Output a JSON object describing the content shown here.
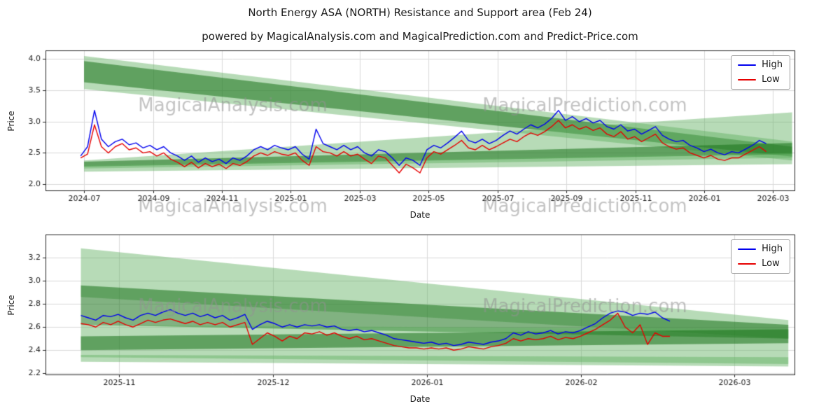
{
  "page": {
    "title": "North Energy ASA (NORTH) Resistance and Support area (Feb 24)",
    "subtitle": "powered by MagicalAnalysis.com and MagicalPrediction.com and Predict-Price.com"
  },
  "colors": {
    "light": "rgba(96,176,96,0.45)",
    "dark": "rgba(25,115,25,0.55)",
    "grid": "#d9d9d9",
    "axis": "#262626",
    "tick_text": "#1a1a1a",
    "watermark": "rgba(145,145,145,0.55)",
    "high_line": "#0000ee",
    "low_line": "#e60000"
  },
  "chart_data": [
    {
      "type": "line",
      "xlabel": "Date",
      "ylabel": "Price",
      "xlim": [
        -1.12,
        20.62
      ],
      "ylim": [
        1.9,
        4.14
      ],
      "x_tick_labels": [
        "2024-07",
        "2024-09",
        "2024-11",
        "2025-01",
        "2025-03",
        "2025-05",
        "2025-07",
        "2025-09",
        "2025-11",
        "2026-01",
        "2026-03"
      ],
      "x_tick_pos": [
        0,
        2,
        4,
        6,
        8,
        10,
        12,
        14,
        16,
        18,
        20
      ],
      "y_ticks": [
        2.0,
        2.5,
        3.0,
        3.5,
        4.0
      ],
      "grid": true,
      "legend_position": "upper right",
      "series": [
        {
          "name": "High",
          "color": "#0000ee",
          "x_start": -0.1,
          "x_end": 19.8,
          "values": [
            2.45,
            2.6,
            3.18,
            2.72,
            2.6,
            2.68,
            2.72,
            2.63,
            2.66,
            2.58,
            2.62,
            2.55,
            2.6,
            2.5,
            2.45,
            2.38,
            2.45,
            2.35,
            2.42,
            2.36,
            2.4,
            2.33,
            2.42,
            2.38,
            2.45,
            2.55,
            2.6,
            2.55,
            2.62,
            2.58,
            2.55,
            2.6,
            2.48,
            2.4,
            2.88,
            2.65,
            2.6,
            2.55,
            2.62,
            2.55,
            2.6,
            2.5,
            2.45,
            2.55,
            2.52,
            2.42,
            2.3,
            2.42,
            2.38,
            2.3,
            2.55,
            2.62,
            2.58,
            2.66,
            2.75,
            2.85,
            2.7,
            2.66,
            2.72,
            2.65,
            2.7,
            2.78,
            2.85,
            2.8,
            2.88,
            2.95,
            2.9,
            2.96,
            3.05,
            3.18,
            3.02,
            3.08,
            3.0,
            3.05,
            2.98,
            3.02,
            2.92,
            2.88,
            2.95,
            2.85,
            2.88,
            2.8,
            2.86,
            2.92,
            2.78,
            2.72,
            2.68,
            2.7,
            2.62,
            2.58,
            2.52,
            2.56,
            2.5,
            2.47,
            2.52,
            2.5,
            2.56,
            2.62,
            2.7,
            2.65
          ]
        },
        {
          "name": "Low",
          "color": "#e60000",
          "x_start": -0.1,
          "x_end": 19.8,
          "values": [
            2.42,
            2.48,
            2.95,
            2.6,
            2.5,
            2.6,
            2.65,
            2.55,
            2.58,
            2.5,
            2.52,
            2.45,
            2.5,
            2.4,
            2.35,
            2.28,
            2.35,
            2.26,
            2.33,
            2.28,
            2.32,
            2.25,
            2.33,
            2.3,
            2.36,
            2.45,
            2.5,
            2.46,
            2.52,
            2.48,
            2.46,
            2.5,
            2.38,
            2.3,
            2.6,
            2.52,
            2.5,
            2.45,
            2.52,
            2.45,
            2.48,
            2.4,
            2.33,
            2.45,
            2.42,
            2.3,
            2.18,
            2.32,
            2.26,
            2.18,
            2.42,
            2.52,
            2.48,
            2.55,
            2.62,
            2.7,
            2.58,
            2.55,
            2.62,
            2.55,
            2.6,
            2.66,
            2.72,
            2.68,
            2.76,
            2.82,
            2.78,
            2.84,
            2.92,
            3.02,
            2.9,
            2.95,
            2.88,
            2.92,
            2.86,
            2.9,
            2.8,
            2.76,
            2.84,
            2.72,
            2.76,
            2.68,
            2.74,
            2.8,
            2.66,
            2.6,
            2.56,
            2.58,
            2.5,
            2.46,
            2.42,
            2.46,
            2.4,
            2.38,
            2.42,
            2.42,
            2.48,
            2.54,
            2.6,
            2.52
          ]
        }
      ],
      "bands": [
        {
          "tone": "light",
          "x0": 0,
          "x1": 20.55,
          "top0": 4.05,
          "bot0": 3.52,
          "top1": 2.68,
          "bot1": 2.38
        },
        {
          "tone": "dark",
          "x0": 0,
          "x1": 20.55,
          "top0": 3.97,
          "bot0": 3.63,
          "top1": 2.6,
          "bot1": 2.44
        },
        {
          "tone": "light",
          "x0": 0,
          "x1": 20.55,
          "top0": 2.38,
          "bot0": 2.25,
          "top1": 3.15,
          "bot1": 2.42
        },
        {
          "tone": "dark",
          "x0": 0,
          "x1": 20.55,
          "top0": 2.36,
          "bot0": 2.28,
          "top1": 2.66,
          "bot1": 2.48
        },
        {
          "tone": "light",
          "x0": 0,
          "x1": 20.55,
          "top0": 2.3,
          "bot0": 2.2,
          "top1": 2.5,
          "bot1": 2.32
        }
      ],
      "watermarks": [
        {
          "text": "MagicalAnalysis.com",
          "fx": 0.25,
          "fy": 0.4
        },
        {
          "text": "MagicalPrediction.com",
          "fx": 0.72,
          "fy": 0.4
        },
        {
          "text": "MagicalAnalysis.com",
          "fx": 0.25,
          "fy": 1.12
        },
        {
          "text": "MagicalPrediction.com",
          "fx": 0.72,
          "fy": 1.12
        }
      ]
    },
    {
      "type": "line",
      "xlabel": "Date",
      "ylabel": "Price",
      "xlim": [
        -0.48,
        4.39
      ],
      "ylim": [
        2.19,
        3.4
      ],
      "x_tick_labels": [
        "2025-11",
        "2025-12",
        "2026-01",
        "2026-02",
        "2026-03"
      ],
      "x_tick_pos": [
        0,
        1,
        2,
        3,
        4
      ],
      "y_ticks": [
        2.2,
        2.4,
        2.6,
        2.8,
        3.0,
        3.2
      ],
      "grid": true,
      "legend_position": "upper right",
      "series": [
        {
          "name": "High",
          "color": "#0000ee",
          "x_start": -0.25,
          "x_end": 3.58,
          "values": [
            2.7,
            2.68,
            2.66,
            2.7,
            2.69,
            2.71,
            2.68,
            2.66,
            2.7,
            2.72,
            2.7,
            2.73,
            2.75,
            2.72,
            2.7,
            2.72,
            2.69,
            2.71,
            2.68,
            2.7,
            2.66,
            2.68,
            2.71,
            2.58,
            2.62,
            2.65,
            2.63,
            2.6,
            2.62,
            2.6,
            2.62,
            2.61,
            2.62,
            2.6,
            2.61,
            2.58,
            2.57,
            2.58,
            2.56,
            2.57,
            2.55,
            2.53,
            2.5,
            2.49,
            2.48,
            2.47,
            2.46,
            2.47,
            2.45,
            2.46,
            2.44,
            2.45,
            2.47,
            2.46,
            2.45,
            2.47,
            2.48,
            2.5,
            2.55,
            2.53,
            2.56,
            2.54,
            2.55,
            2.57,
            2.54,
            2.56,
            2.55,
            2.57,
            2.6,
            2.63,
            2.68,
            2.72,
            2.74,
            2.73,
            2.7,
            2.72,
            2.71,
            2.73,
            2.68,
            2.65
          ]
        },
        {
          "name": "Low",
          "color": "#e60000",
          "x_start": -0.25,
          "x_end": 3.58,
          "values": [
            2.63,
            2.62,
            2.6,
            2.64,
            2.62,
            2.65,
            2.62,
            2.6,
            2.63,
            2.66,
            2.64,
            2.66,
            2.67,
            2.65,
            2.63,
            2.65,
            2.62,
            2.64,
            2.62,
            2.64,
            2.6,
            2.62,
            2.64,
            2.45,
            2.5,
            2.55,
            2.52,
            2.48,
            2.52,
            2.5,
            2.55,
            2.54,
            2.56,
            2.53,
            2.55,
            2.52,
            2.5,
            2.52,
            2.49,
            2.5,
            2.48,
            2.46,
            2.44,
            2.43,
            2.42,
            2.42,
            2.41,
            2.42,
            2.41,
            2.42,
            2.4,
            2.41,
            2.43,
            2.42,
            2.41,
            2.43,
            2.44,
            2.46,
            2.5,
            2.48,
            2.5,
            2.49,
            2.5,
            2.52,
            2.49,
            2.51,
            2.5,
            2.52,
            2.55,
            2.58,
            2.62,
            2.66,
            2.72,
            2.6,
            2.55,
            2.62,
            2.45,
            2.55,
            2.52,
            2.52
          ]
        }
      ],
      "bands": [
        {
          "tone": "light",
          "x0": -0.25,
          "x1": 4.35,
          "top0": 3.28,
          "bot0": 2.86,
          "top1": 2.66,
          "bot1": 2.5
        },
        {
          "tone": "dark",
          "x0": -0.25,
          "x1": 4.35,
          "top0": 2.96,
          "bot0": 2.62,
          "top1": 2.62,
          "bot1": 2.5
        },
        {
          "tone": "light",
          "x0": -0.25,
          "x1": 4.35,
          "top0": 2.62,
          "bot0": 2.34,
          "top1": 2.58,
          "bot1": 2.28
        },
        {
          "tone": "dark",
          "x0": -0.25,
          "x1": 4.35,
          "top0": 2.52,
          "bot0": 2.4,
          "top1": 2.58,
          "bot1": 2.46
        },
        {
          "tone": "light",
          "x0": -0.25,
          "x1": 4.35,
          "top0": 2.36,
          "bot0": 2.3,
          "top1": 2.34,
          "bot1": 2.26
        }
      ],
      "watermarks": [
        {
          "text": "MagicalAnalysis.com",
          "fx": 0.25,
          "fy": 0.52
        },
        {
          "text": "MagicalPrediction.com",
          "fx": 0.72,
          "fy": 0.52
        }
      ]
    }
  ]
}
